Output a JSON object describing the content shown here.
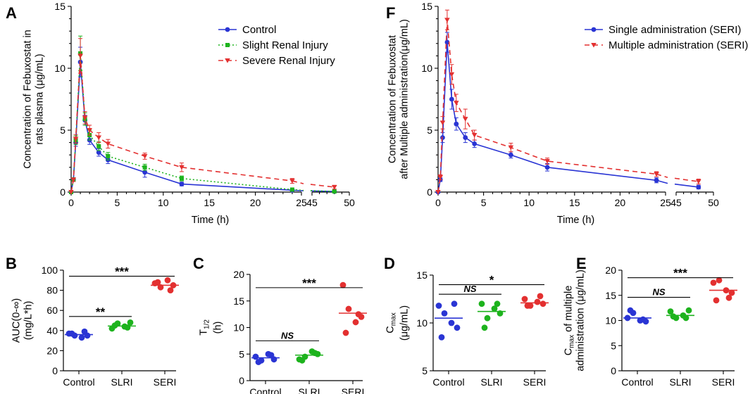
{
  "figure": {
    "panels": {
      "A": "A",
      "B": "B",
      "C": "C",
      "D": "D",
      "E": "E",
      "F": "F"
    }
  },
  "chart_data": [
    {
      "id": "A",
      "type": "line",
      "panel_label": "A",
      "xlabel": "Time (h)",
      "ylabel_lines": [
        "Concentration of Febuxostat in",
        "rats plasma (μg/mL)"
      ],
      "ylim": [
        0,
        15
      ],
      "yticks": [
        0,
        5,
        10,
        15
      ],
      "x_segments": [
        [
          0,
          25
        ],
        [
          45,
          50
        ]
      ],
      "xticks": [
        0,
        5,
        10,
        15,
        20,
        25,
        45,
        50
      ],
      "legend_position": "top-right",
      "series": [
        {
          "name": "Control",
          "color": "#2a35d4",
          "dash": "",
          "marker": "circle",
          "x": [
            0,
            0.25,
            0.5,
            1,
            1.5,
            2,
            3,
            4,
            8,
            12,
            24,
            48
          ],
          "y": [
            0,
            1.0,
            4.0,
            10.5,
            5.8,
            4.2,
            3.2,
            2.6,
            1.6,
            0.65,
            0.15,
            0.05
          ],
          "err": [
            0,
            0.15,
            0.3,
            1.2,
            0.4,
            0.35,
            0.3,
            0.3,
            0.4,
            0.15,
            0.05,
            0.05
          ]
        },
        {
          "name": "Slight Renal Injury",
          "color": "#1db31d",
          "dash": "2,3",
          "marker": "square",
          "x": [
            0,
            0.25,
            0.5,
            1,
            1.5,
            2,
            3,
            4,
            8,
            12,
            24,
            48
          ],
          "y": [
            0,
            1.0,
            4.2,
            11.2,
            5.9,
            4.6,
            3.7,
            2.9,
            2.0,
            1.1,
            0.2,
            0.05
          ],
          "err": [
            0,
            0.15,
            0.35,
            1.4,
            0.5,
            0.4,
            0.35,
            0.3,
            0.25,
            0.2,
            0.05,
            0.05
          ]
        },
        {
          "name": "Severe Renal Injury",
          "color": "#e33030",
          "dash": "7,5",
          "marker": "triangle",
          "x": [
            0,
            0.25,
            0.5,
            1,
            1.5,
            2,
            3,
            4,
            8,
            12,
            24,
            48
          ],
          "y": [
            0,
            1.0,
            4.3,
            11.0,
            6.0,
            5.0,
            4.4,
            3.9,
            2.9,
            2.0,
            0.9,
            0.4
          ],
          "err": [
            0,
            0.15,
            0.35,
            1.4,
            0.5,
            0.4,
            0.4,
            0.35,
            0.25,
            0.35,
            0.2,
            0.15
          ]
        }
      ]
    },
    {
      "id": "F",
      "type": "line",
      "panel_label": "F",
      "xlabel": "Time (h)",
      "ylabel_lines": [
        "Concentration of Febuxostat",
        "after Multiple administration(μg/mL)"
      ],
      "ylim": [
        0,
        15
      ],
      "yticks": [
        0,
        5,
        10,
        15
      ],
      "x_segments": [
        [
          0,
          25
        ],
        [
          45,
          50
        ]
      ],
      "xticks": [
        0,
        5,
        10,
        15,
        20,
        25,
        45,
        50
      ],
      "legend_position": "top-right",
      "series": [
        {
          "name": "Single administration (SERI)",
          "color": "#2a35d4",
          "dash": "",
          "marker": "circle",
          "x": [
            0,
            0.25,
            0.5,
            1,
            1.5,
            2,
            3,
            4,
            8,
            12,
            24,
            48
          ],
          "y": [
            0,
            1.0,
            4.4,
            12.1,
            7.5,
            5.5,
            4.4,
            3.9,
            3.0,
            2.0,
            0.95,
            0.4
          ],
          "err": [
            0,
            0.15,
            0.4,
            0.8,
            0.8,
            0.5,
            0.4,
            0.3,
            0.25,
            0.3,
            0.2,
            0.15
          ]
        },
        {
          "name": "Multiple administration (SERI)",
          "color": "#e33030",
          "dash": "7,5",
          "marker": "triangle",
          "x": [
            0,
            0.25,
            0.5,
            1,
            1.5,
            2,
            3,
            4,
            8,
            12,
            24,
            48
          ],
          "y": [
            0,
            1.2,
            5.6,
            13.9,
            9.5,
            7.2,
            5.9,
            4.6,
            3.6,
            2.5,
            1.45,
            0.85
          ],
          "err": [
            0,
            0.2,
            0.5,
            0.8,
            0.8,
            0.7,
            0.8,
            0.4,
            0.35,
            0.25,
            0.2,
            0.2
          ]
        }
      ]
    },
    {
      "id": "B",
      "type": "scatter",
      "panel_label": "B",
      "categories": [
        "Control",
        "SLRI",
        "SERI"
      ],
      "colors": [
        "#2a35d4",
        "#1db31d",
        "#e33030"
      ],
      "ylabel_lines": [
        "AUC(0-∞)",
        "(mg/L*h)"
      ],
      "ylim": [
        0,
        100
      ],
      "yticks": [
        0,
        20,
        40,
        60,
        80,
        100
      ],
      "points": [
        [
          37,
          35,
          33,
          35,
          37,
          39
        ],
        [
          42,
          47,
          44,
          48,
          45,
          43
        ],
        [
          87,
          83,
          90,
          85,
          88,
          80
        ]
      ],
      "means": [
        36,
        44.5,
        85
      ],
      "comparisons": [
        {
          "from": 0,
          "to": 1,
          "y": 54,
          "label": "**"
        },
        {
          "from": 0,
          "to": 2,
          "y": 94,
          "label": "***"
        }
      ]
    },
    {
      "id": "C",
      "type": "scatter",
      "panel_label": "C",
      "categories": [
        "Control",
        "SLRI",
        "SERI"
      ],
      "colors": [
        "#2a35d4",
        "#1db31d",
        "#e33030"
      ],
      "ylabel_lines": [
        "T1/2",
        "(h)"
      ],
      "ylim": [
        0,
        20
      ],
      "yticks": [
        0,
        5,
        10,
        15,
        20
      ],
      "points": [
        [
          4.5,
          3.8,
          5.0,
          4.0,
          3.5,
          4.8
        ],
        [
          4.0,
          4.5,
          5.5,
          5.0,
          3.8,
          5.2
        ],
        [
          18.0,
          13.5,
          11.0,
          12.0,
          9.0,
          12.5
        ]
      ],
      "means": [
        4.3,
        4.8,
        12.7
      ],
      "comparisons": [
        {
          "from": 0,
          "to": 1,
          "y": 7.5,
          "label": "NS"
        },
        {
          "from": 0,
          "to": 2,
          "y": 17.5,
          "label": "***"
        }
      ]
    },
    {
      "id": "D",
      "type": "scatter",
      "panel_label": "D",
      "categories": [
        "Control",
        "SLRI",
        "SERI"
      ],
      "colors": [
        "#2a35d4",
        "#1db31d",
        "#e33030"
      ],
      "ylabel_lines": [
        "Cmax",
        "(μg/mL)"
      ],
      "ylim": [
        5,
        15
      ],
      "yticks": [
        5,
        10,
        15
      ],
      "points": [
        [
          11.8,
          11.0,
          10.0,
          9.5,
          8.5,
          12.0
        ],
        [
          12.0,
          10.5,
          11.5,
          11.0,
          9.5,
          12.0
        ],
        [
          12.5,
          11.8,
          12.2,
          12.0,
          11.8,
          12.8
        ]
      ],
      "means": [
        10.5,
        11.2,
        12.1
      ],
      "comparisons": [
        {
          "from": 0,
          "to": 1,
          "y": 13.0,
          "label": "NS"
        },
        {
          "from": 0,
          "to": 2,
          "y": 14.0,
          "label": "*"
        }
      ]
    },
    {
      "id": "E",
      "type": "scatter",
      "panel_label": "E",
      "categories": [
        "Control",
        "SLRI",
        "SERI"
      ],
      "colors": [
        "#2a35d4",
        "#1db31d",
        "#e33030"
      ],
      "ylabel_lines": [
        "Cmax of multiple",
        "administration (μg/mL)"
      ],
      "ylim": [
        0,
        20
      ],
      "yticks": [
        0,
        5,
        10,
        15,
        20
      ],
      "points": [
        [
          10.5,
          11.5,
          10.0,
          9.8,
          12.0,
          10.2
        ],
        [
          11.8,
          10.5,
          11.0,
          12.0,
          10.8,
          10.5
        ],
        [
          17.5,
          18.0,
          16.0,
          15.5,
          14.0,
          14.5
        ]
      ],
      "means": [
        10.5,
        11.0,
        16.0
      ],
      "comparisons": [
        {
          "from": 0,
          "to": 1,
          "y": 14.6,
          "label": "NS"
        },
        {
          "from": 0,
          "to": 2,
          "y": 18.5,
          "label": "***"
        }
      ]
    }
  ]
}
